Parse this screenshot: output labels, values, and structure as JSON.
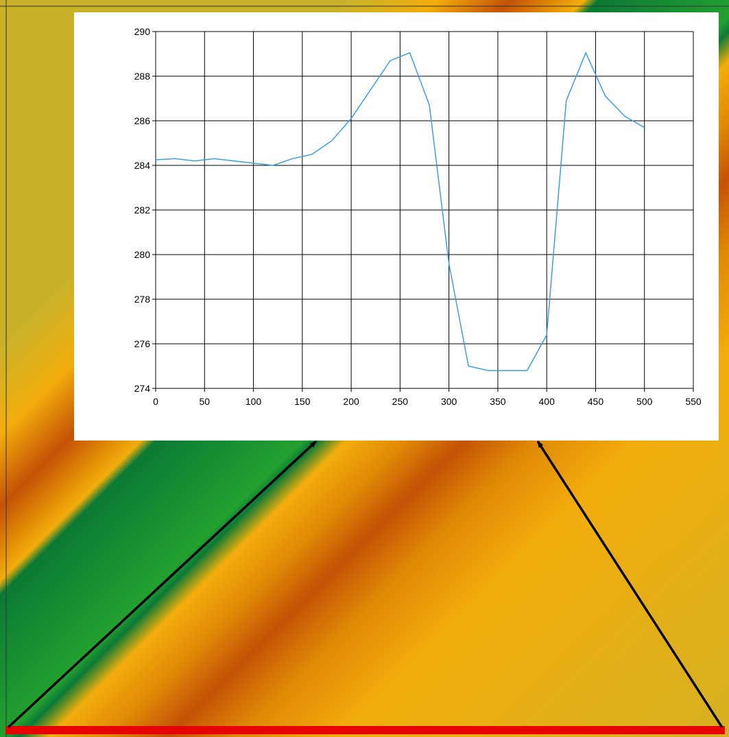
{
  "view": {
    "colors": {
      "lowland": "#c9b22a",
      "slope_light": "#f2ad0c",
      "slope_mid": "#e08a06",
      "ridge": "#c45206",
      "channel_edge": "#0b7a35",
      "channel": "#23a02f",
      "profile_line": "#e80000",
      "arrow": "#000000",
      "chart_background": "#ffffff",
      "chart_line": "#3a9ee0"
    }
  },
  "chart_data": {
    "type": "line",
    "title": "",
    "xlabel": "",
    "ylabel": "",
    "xlim": [
      0,
      550
    ],
    "ylim": [
      274,
      290
    ],
    "x_ticks": [
      0,
      50,
      100,
      150,
      200,
      250,
      300,
      350,
      400,
      450,
      500,
      550
    ],
    "y_ticks": [
      274,
      276,
      278,
      280,
      282,
      284,
      286,
      288,
      290
    ],
    "grid": true,
    "series": [
      {
        "x": [
          0,
          20,
          40,
          60,
          80,
          100,
          120,
          140,
          160,
          180,
          200,
          220,
          240,
          260,
          280,
          300,
          320,
          340,
          360,
          380,
          400,
          420,
          440,
          460,
          480,
          500
        ],
        "y": [
          284.25,
          284.3,
          284.2,
          284.3,
          284.2,
          284.1,
          284.0,
          284.3,
          284.5,
          285.1,
          286.1,
          287.4,
          288.7,
          289.05,
          286.7,
          279.6,
          275.0,
          274.8,
          274.8,
          274.8,
          276.4,
          286.9,
          289.05,
          287.1,
          286.2,
          285.7
        ]
      }
    ]
  }
}
